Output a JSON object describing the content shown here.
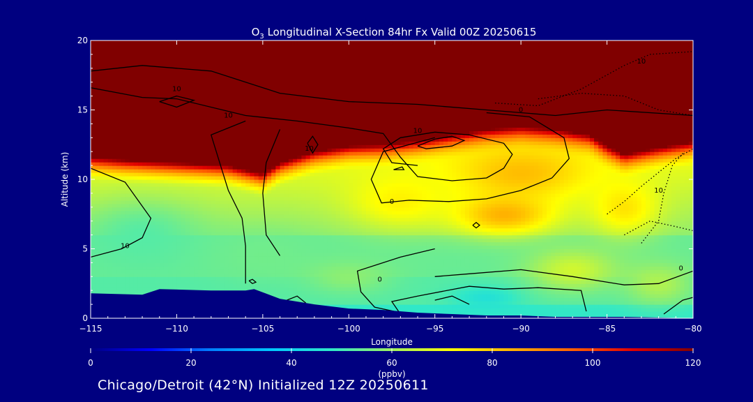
{
  "chart_data": {
    "type": "heatmap",
    "title_prefix": "O",
    "title_subscript": "3",
    "title_rest": " Longitudinal X-Section 84hr  Fx Valid 00Z 20250615",
    "xlabel": "Longitude",
    "ylabel": "Altitude (km)",
    "xlim": [
      -115,
      -80
    ],
    "ylim": [
      0,
      20
    ],
    "x_ticks": [
      -115,
      -110,
      -105,
      -100,
      -95,
      -90,
      -85,
      -80
    ],
    "x_tick_labels": [
      "−115",
      "−110",
      "−105",
      "−100",
      "−95",
      "−90",
      "−85",
      "−80"
    ],
    "y_ticks": [
      0,
      5,
      10,
      15,
      20
    ],
    "y_tick_labels": [
      "0",
      "5",
      "10",
      "15",
      "20"
    ],
    "colorbar": {
      "min": 0,
      "max": 120,
      "ticks": [
        0,
        20,
        40,
        60,
        80,
        100,
        120
      ],
      "tick_labels": [
        "0",
        "20",
        "40",
        "60",
        "80",
        "100",
        "120"
      ],
      "unit": "(ppbv)",
      "colors": [
        "#000080",
        "#0000ff",
        "#0080ff",
        "#00c8ff",
        "#30e8c8",
        "#a0f060",
        "#ffff00",
        "#ffb000",
        "#ff6000",
        "#e00000",
        "#800000"
      ]
    },
    "stratosphere_threshold": 120,
    "tropopause_height_km": [
      [
        -115,
        11.6
      ],
      [
        -113,
        11.4
      ],
      [
        -110,
        11.2
      ],
      [
        -107,
        11.0
      ],
      [
        -105,
        10.4
      ],
      [
        -104,
        11.2
      ],
      [
        -102,
        12.0
      ],
      [
        -100,
        12.4
      ],
      [
        -98,
        12.5
      ],
      [
        -96,
        12.8
      ],
      [
        -94,
        13.2
      ],
      [
        -92,
        13.6
      ],
      [
        -90,
        13.8
      ],
      [
        -88,
        13.6
      ],
      [
        -86,
        13.2
      ],
      [
        -85,
        12.4
      ],
      [
        -84,
        11.8
      ],
      [
        -82,
        12.3
      ],
      [
        -80,
        12.7
      ]
    ],
    "terrain_height_km": [
      [
        -115,
        1.8
      ],
      [
        -112,
        1.7
      ],
      [
        -111,
        2.1
      ],
      [
        -108,
        2.0
      ],
      [
        -106,
        2.0
      ],
      [
        -105.5,
        2.1
      ],
      [
        -104,
        1.4
      ],
      [
        -102,
        1.0
      ],
      [
        -100,
        0.7
      ],
      [
        -98,
        0.6
      ],
      [
        -96,
        0.4
      ],
      [
        -94,
        0.3
      ],
      [
        -92,
        0.2
      ],
      [
        -90,
        0.2
      ],
      [
        -88,
        0.1
      ],
      [
        -86,
        0.1
      ],
      [
        -84,
        0.1
      ],
      [
        -82,
        0.05
      ],
      [
        -80,
        0.0
      ]
    ],
    "blobs": [
      {
        "lon": -112,
        "alt": 6.0,
        "ppbv": 52,
        "r_lon": 3.5,
        "r_alt": 2.5
      },
      {
        "lon": -105,
        "alt": 4.5,
        "ppbv": 55,
        "r_lon": 3.0,
        "r_alt": 2.0
      },
      {
        "lon": -92,
        "alt": 1.5,
        "ppbv": 45,
        "r_lon": 2.0,
        "r_alt": 0.8
      },
      {
        "lon": -90,
        "alt": 10.5,
        "ppbv": 82,
        "r_lon": 4.0,
        "r_alt": 2.0
      },
      {
        "lon": -91,
        "alt": 7.5,
        "ppbv": 84,
        "r_lon": 3.0,
        "r_alt": 1.5
      },
      {
        "lon": -97,
        "alt": 8.5,
        "ppbv": 74,
        "r_lon": 3.0,
        "r_alt": 2.0
      },
      {
        "lon": -84,
        "alt": 8.0,
        "ppbv": 76,
        "r_lon": 2.0,
        "r_alt": 2.0
      },
      {
        "lon": -82,
        "alt": 2.5,
        "ppbv": 62,
        "r_lon": 2.0,
        "r_alt": 1.5
      },
      {
        "lon": -87,
        "alt": 3.5,
        "ppbv": 66,
        "r_lon": 2.5,
        "r_alt": 1.5
      },
      {
        "lon": -100,
        "alt": 3.0,
        "ppbv": 58,
        "r_lon": 2.5,
        "r_alt": 1.2
      }
    ],
    "contour_labels": [
      {
        "lon": -110,
        "alt": 16.5,
        "text": "10"
      },
      {
        "lon": -107,
        "alt": 14.6,
        "text": "10"
      },
      {
        "lon": -113,
        "alt": 5.2,
        "text": "10"
      },
      {
        "lon": -102.3,
        "alt": 12.2,
        "text": "10"
      },
      {
        "lon": -96,
        "alt": 13.5,
        "text": "10"
      },
      {
        "lon": -90,
        "alt": 15.0,
        "text": "0"
      },
      {
        "lon": -97.5,
        "alt": 8.4,
        "text": "0"
      },
      {
        "lon": -98.2,
        "alt": 2.8,
        "text": "0"
      },
      {
        "lon": -83,
        "alt": 18.5,
        "text": "10"
      },
      {
        "lon": -82,
        "alt": 9.2,
        "text": "10"
      },
      {
        "lon": -80.7,
        "alt": 3.6,
        "text": "0"
      }
    ],
    "contours_solid": [
      [
        [
          -115,
          17.8
        ],
        [
          -112,
          18.2
        ],
        [
          -108,
          17.8
        ],
        [
          -104,
          16.2
        ],
        [
          -100,
          15.6
        ],
        [
          -96,
          15.4
        ],
        [
          -92,
          15.0
        ],
        [
          -88,
          14.6
        ],
        [
          -85,
          15.0
        ],
        [
          -80,
          14.6
        ]
      ],
      [
        [
          -115,
          16.6
        ],
        [
          -112,
          15.9
        ],
        [
          -110,
          15.8
        ],
        [
          -106,
          14.6
        ],
        [
          -103,
          14.2
        ],
        [
          -100,
          13.7
        ],
        [
          -98,
          13.3
        ],
        [
          -97,
          11.6
        ],
        [
          -96,
          10.2
        ],
        [
          -94,
          9.9
        ],
        [
          -92,
          10.1
        ],
        [
          -91,
          10.8
        ],
        [
          -90.5,
          11.8
        ],
        [
          -91,
          12.6
        ],
        [
          -93,
          13.2
        ],
        [
          -95,
          13.4
        ],
        [
          -97,
          13.0
        ],
        [
          -98,
          12.2
        ],
        [
          -97.5,
          11.2
        ],
        [
          -96,
          11.0
        ]
      ],
      [
        [
          -111,
          15.6
        ],
        [
          -110,
          16.0
        ],
        [
          -109,
          15.7
        ],
        [
          -110,
          15.2
        ],
        [
          -111,
          15.6
        ]
      ],
      [
        [
          -96,
          12.4
        ],
        [
          -95,
          12.9
        ],
        [
          -94,
          13.1
        ],
        [
          -93.3,
          12.8
        ],
        [
          -94,
          12.4
        ],
        [
          -95.5,
          12.2
        ],
        [
          -96,
          12.4
        ]
      ],
      [
        [
          -115,
          10.8
        ],
        [
          -113,
          9.8
        ],
        [
          -111.5,
          7.2
        ],
        [
          -112,
          5.8
        ],
        [
          -113.2,
          5.0
        ],
        [
          -115,
          4.4
        ]
      ],
      [
        [
          -106,
          14.2
        ],
        [
          -108,
          13.2
        ],
        [
          -107.5,
          11.2
        ],
        [
          -107,
          9.2
        ],
        [
          -106.2,
          7.2
        ],
        [
          -106,
          5.2
        ],
        [
          -106,
          2.5
        ]
      ],
      [
        [
          -104,
          13.6
        ],
        [
          -104.8,
          11.2
        ],
        [
          -105,
          9.0
        ],
        [
          -104.8,
          6.0
        ],
        [
          -104,
          4.5
        ]
      ],
      [
        [
          -95,
          13.0
        ],
        [
          -98,
          12.0
        ],
        [
          -98.7,
          10.0
        ],
        [
          -98.1,
          8.3
        ],
        [
          -96.5,
          8.5
        ],
        [
          -94.2,
          8.4
        ],
        [
          -92,
          8.6
        ],
        [
          -90,
          9.2
        ],
        [
          -88.2,
          10.1
        ],
        [
          -87.2,
          11.5
        ],
        [
          -87.5,
          13.0
        ],
        [
          -89.5,
          14.5
        ],
        [
          -92,
          14.8
        ]
      ],
      [
        [
          -95,
          5.0
        ],
        [
          -97,
          4.4
        ],
        [
          -99.5,
          3.4
        ],
        [
          -99.3,
          1.9
        ],
        [
          -98.5,
          0.8
        ],
        [
          -97,
          0.4
        ]
      ],
      [
        [
          -97,
          0.3
        ],
        [
          -97.5,
          1.2
        ],
        [
          -96,
          1.6
        ],
        [
          -93,
          2.3
        ],
        [
          -91,
          2.1
        ],
        [
          -89,
          2.2
        ],
        [
          -86.5,
          2.0
        ],
        [
          -86.2,
          0.5
        ]
      ],
      [
        [
          -95,
          3.0
        ],
        [
          -93,
          3.2
        ],
        [
          -90,
          3.5
        ],
        [
          -87,
          3.0
        ],
        [
          -84,
          2.4
        ],
        [
          -82,
          2.5
        ],
        [
          -80,
          3.4
        ]
      ],
      [
        [
          -95,
          1.3
        ],
        [
          -94,
          1.6
        ],
        [
          -93,
          1.0
        ]
      ],
      [
        [
          -81.7,
          0.3
        ],
        [
          -80.6,
          1.3
        ],
        [
          -80,
          1.5
        ]
      ],
      [
        [
          -92.8,
          6.7
        ],
        [
          -92.6,
          6.9
        ],
        [
          -92.4,
          6.7
        ],
        [
          -92.6,
          6.5
        ],
        [
          -92.8,
          6.7
        ]
      ],
      [
        [
          -105.8,
          2.7
        ],
        [
          -105.6,
          2.8
        ],
        [
          -105.4,
          2.6
        ],
        [
          -105.6,
          2.5
        ],
        [
          -105.8,
          2.7
        ]
      ],
      [
        [
          -103.6,
          1.3
        ],
        [
          -103,
          1.6
        ],
        [
          -102.5,
          1.1
        ]
      ],
      [
        [
          -97.4,
          10.7
        ],
        [
          -96.9,
          10.9
        ],
        [
          -96.8,
          10.7
        ],
        [
          -97.4,
          10.7
        ]
      ],
      [
        [
          -102.4,
          12.6
        ],
        [
          -102.1,
          13.1
        ],
        [
          -101.8,
          12.5
        ],
        [
          -102.1,
          11.9
        ],
        [
          -102.4,
          12.6
        ]
      ]
    ],
    "contours_dotted": [
      [
        [
          -91.5,
          15.5
        ],
        [
          -89,
          15.3
        ],
        [
          -86.5,
          16.5
        ],
        [
          -84,
          18.2
        ],
        [
          -82.5,
          19.0
        ],
        [
          -80,
          19.2
        ]
      ],
      [
        [
          -89,
          15.8
        ],
        [
          -86.5,
          16.2
        ],
        [
          -84,
          16.0
        ],
        [
          -82,
          15.0
        ],
        [
          -80,
          14.6
        ]
      ],
      [
        [
          -85,
          7.5
        ],
        [
          -84,
          8.4
        ],
        [
          -83,
          9.5
        ],
        [
          -82,
          10.5
        ],
        [
          -81,
          11.5
        ],
        [
          -80,
          12.2
        ]
      ],
      [
        [
          -84,
          6.0
        ],
        [
          -82.5,
          7.0
        ],
        [
          -81,
          6.6
        ],
        [
          -80,
          6.3
        ]
      ],
      [
        [
          -83,
          5.4
        ],
        [
          -82,
          7.0
        ],
        [
          -81.7,
          9.0
        ],
        [
          -81.2,
          11.0
        ],
        [
          -80.5,
          12.0
        ]
      ]
    ]
  },
  "footer": {
    "text": "Chicago/Detroit (42°N) Initialized 12Z 20250611"
  }
}
